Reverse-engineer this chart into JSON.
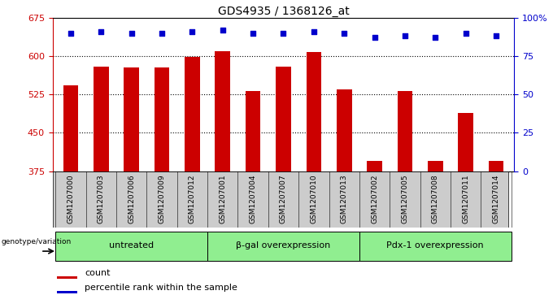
{
  "title": "GDS4935 / 1368126_at",
  "samples": [
    "GSM1207000",
    "GSM1207003",
    "GSM1207006",
    "GSM1207009",
    "GSM1207012",
    "GSM1207001",
    "GSM1207004",
    "GSM1207007",
    "GSM1207010",
    "GSM1207013",
    "GSM1207002",
    "GSM1207005",
    "GSM1207008",
    "GSM1207011",
    "GSM1207014"
  ],
  "counts": [
    543,
    580,
    578,
    578,
    598,
    610,
    531,
    580,
    608,
    534,
    395,
    532,
    395,
    488,
    395
  ],
  "percentiles": [
    90,
    91,
    90,
    90,
    91,
    92,
    90,
    90,
    91,
    90,
    87,
    88,
    87,
    90,
    88
  ],
  "groups": [
    {
      "label": "untreated",
      "start": 0,
      "end": 5
    },
    {
      "label": "β-gal overexpression",
      "start": 5,
      "end": 10
    },
    {
      "label": "Pdx-1 overexpression",
      "start": 10,
      "end": 15
    }
  ],
  "bar_color": "#cc0000",
  "dot_color": "#0000cc",
  "ylim_left": [
    375,
    675
  ],
  "ylim_right": [
    0,
    100
  ],
  "yticks_left": [
    375,
    450,
    525,
    600,
    675
  ],
  "yticks_right": [
    0,
    25,
    50,
    75,
    100
  ],
  "gridlines": [
    450,
    525,
    600
  ],
  "group_bg_color": "#90ee90",
  "sample_bg_color": "#cccccc",
  "title_color": "#000000",
  "left_axis_color": "#cc0000",
  "right_axis_color": "#0000cc",
  "bar_width": 0.5,
  "legend_items": [
    {
      "label": "count",
      "color": "#cc0000"
    },
    {
      "label": "percentile rank within the sample",
      "color": "#0000cc"
    }
  ]
}
